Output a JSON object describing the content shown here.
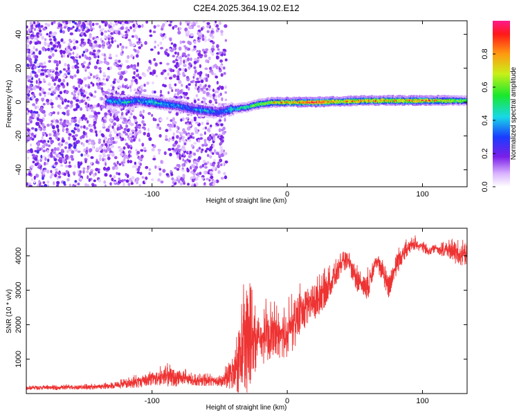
{
  "title": "C2E4.2025.364.19.02.E12",
  "chart_data": [
    {
      "type": "heatmap",
      "name": "spectrogram",
      "xlabel": "Height of straight line (km)",
      "ylabel": "Frequency (Hz)",
      "xlim": [
        -193,
        133
      ],
      "ylim": [
        -50,
        48
      ],
      "xticks": [
        -100,
        0,
        100
      ],
      "yticks": [
        -40,
        -20,
        0,
        20,
        40
      ],
      "ridge": {
        "x": [
          -133,
          -120,
          -110,
          -100,
          -90,
          -80,
          -70,
          -60,
          -50,
          -40,
          -30,
          -20,
          -10,
          0,
          20,
          40,
          60,
          80,
          100,
          120,
          133
        ],
        "frequency": [
          1,
          0,
          1,
          0,
          -1,
          -2,
          -4,
          -5,
          -6,
          -4,
          -3,
          -1,
          0,
          0,
          0,
          0.5,
          1,
          1,
          1,
          1,
          1
        ],
        "peak_amplitude": [
          0.35,
          0.4,
          0.35,
          0.45,
          0.4,
          0.35,
          0.3,
          0.4,
          0.3,
          0.45,
          0.55,
          0.65,
          0.75,
          0.85,
          0.95,
          0.8,
          0.85,
          0.8,
          0.9,
          0.7,
          0.6
        ]
      },
      "colorbar": {
        "label": "Normalized spectral amplitude",
        "range": [
          0,
          1
        ],
        "ticks": [
          0.0,
          0.2,
          0.4,
          0.6,
          0.8
        ],
        "tick_labels": [
          "0.0",
          "0.2",
          "0.4",
          "0.6",
          "0.8"
        ]
      }
    },
    {
      "type": "line",
      "name": "snr",
      "xlabel": "Height of straight line (km)",
      "ylabel": "SNR (10 * v/v)",
      "xlim": [
        -193,
        133
      ],
      "ylim": [
        0,
        4800
      ],
      "xticks": [
        -100,
        0,
        100
      ],
      "yticks": [
        1000,
        2000,
        3000,
        4000
      ],
      "color": "#ee3333",
      "series": [
        {
          "name": "SNR",
          "x": [
            -193,
            -180,
            -170,
            -160,
            -150,
            -140,
            -130,
            -120,
            -110,
            -100,
            -90,
            -80,
            -70,
            -60,
            -50,
            -40,
            -35,
            -30,
            -25,
            -20,
            -15,
            -10,
            -5,
            0,
            5,
            10,
            15,
            20,
            25,
            30,
            35,
            40,
            45,
            50,
            55,
            60,
            65,
            70,
            75,
            80,
            85,
            90,
            95,
            100,
            105,
            110,
            115,
            120,
            125,
            133
          ],
          "values": [
            150,
            160,
            150,
            170,
            160,
            180,
            200,
            250,
            300,
            380,
            420,
            400,
            350,
            330,
            320,
            400,
            800,
            1100,
            1300,
            1300,
            1500,
            1600,
            1500,
            1600,
            1800,
            2200,
            2400,
            2500,
            2700,
            3000,
            3300,
            3700,
            3800,
            3300,
            3100,
            3000,
            3800,
            3500,
            3000,
            3600,
            4000,
            4200,
            4300,
            4200,
            4100,
            4200,
            4100,
            4100,
            4000,
            3900
          ],
          "spike_max": [
            250,
            250,
            260,
            280,
            280,
            300,
            350,
            450,
            600,
            700,
            900,
            850,
            600,
            600,
            550,
            1200,
            2600,
            4050,
            3000,
            2600,
            2800,
            2700,
            2600,
            2800,
            3000,
            3300,
            3300,
            3400,
            3600,
            3700,
            3900,
            4100,
            4200,
            4000,
            3500,
            3700,
            4100,
            4000,
            3600,
            4200,
            4500,
            4500,
            4600,
            4500,
            4300,
            4400,
            4400,
            4500,
            4600,
            4400
          ]
        }
      ]
    }
  ]
}
